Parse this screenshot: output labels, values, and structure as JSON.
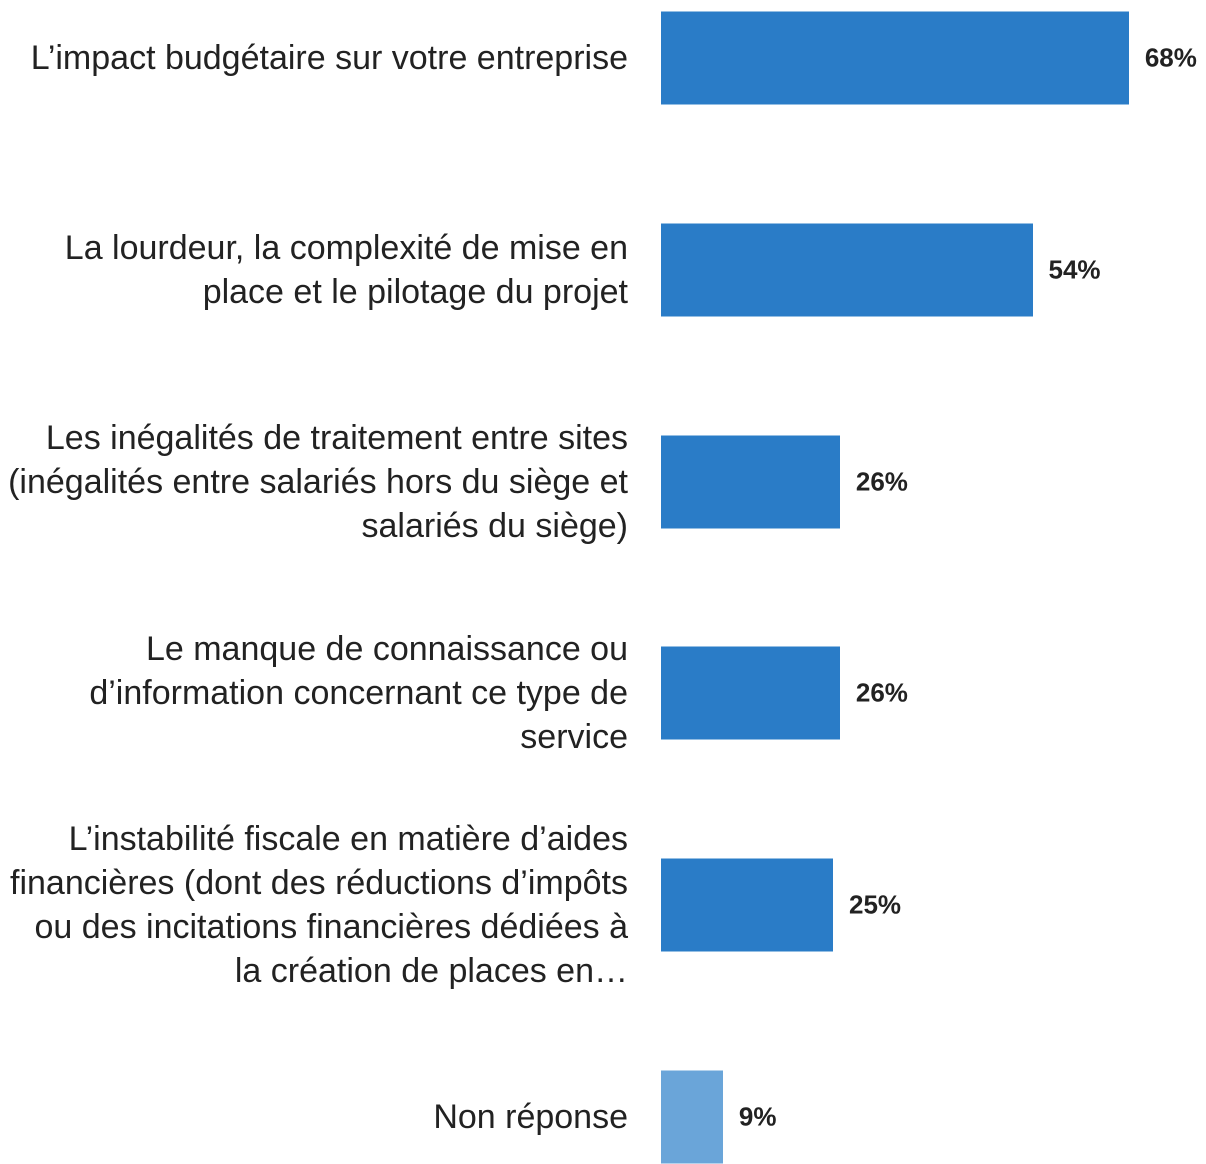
{
  "chart_data": {
    "type": "bar",
    "orientation": "horizontal",
    "categories": [
      "L’impact budgétaire sur votre entreprise",
      "La lourdeur, la complexité de mise en place et le pilotage du projet",
      "Les inégalités de traitement entre sites (inégalités entre salariés hors du siège et salariés du siège)",
      "Le manque de connaissance ou d’information concernant ce type de service",
      "L’instabilité fiscale en matière d’aides financières (dont des réductions d’impôts ou des incitations financières dédiées à la création de places en…",
      "Non réponse"
    ],
    "values": [
      68,
      54,
      26,
      26,
      25,
      9
    ],
    "value_labels": [
      "68%",
      "54%",
      "26%",
      "26%",
      "25%",
      "9%"
    ],
    "colors": [
      "#2a7cc7",
      "#2a7cc7",
      "#2a7cc7",
      "#2a7cc7",
      "#2a7cc7",
      "#6aa5d9"
    ]
  }
}
